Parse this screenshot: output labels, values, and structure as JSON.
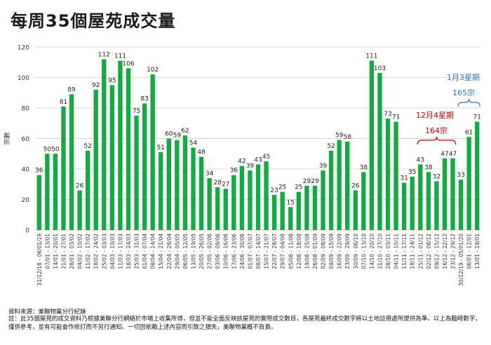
{
  "title": "每周35個屋苑成交量",
  "source": "資料來源：美聯物業分行紀錄",
  "note": "註：此35個屋苑的成交資料乃根據美聯分行網絡於市場上收集所得，但並不能全面反映該屋苑的實際成交數目，各屋苑最終成交數字將以土地註冊處所提供為準。以上為臨時數字，僅供參考，並有可能會作修訂而不另行通知。一切因依賴上述內容而引致之損失，美聯物業概不負責。",
  "annotations": {
    "dec_label": "12月4星期",
    "dec_total": "164宗",
    "jan_label": "1月3星期",
    "jan_total": "165宗"
  },
  "colors": {
    "bar": "#13a943",
    "grid": "#d9d9d9",
    "dec_annotation": "#c00000",
    "jan_annotation": "#2e75b6"
  },
  "chart_data": {
    "type": "bar",
    "title": "每周35個屋苑成交量",
    "xlabel": "",
    "ylabel": "宗數",
    "ylim": [
      0,
      120
    ],
    "yticks": [
      0,
      20,
      40,
      60,
      80,
      100,
      120
    ],
    "grid": true,
    "categories": [
      "31/12/18 - 06/01/19",
      "07/01 - 13/01",
      "14/01 - 20/01",
      "21/01 - 27/01",
      "28/01 - 03/02",
      "04/02 - 10/02",
      "11/02 - 17/02",
      "18/02 - 24/02",
      "25/02 - 03/03",
      "04/03 - 10/03",
      "11/03 - 17/03",
      "18/03 - 24/03",
      "25/03 - 31/03",
      "01/04 - 07/04",
      "08/04 - 14/04",
      "15/04 - 21/04",
      "22/04 - 28/04",
      "29/04 - 05/05",
      "06/05 - 12/05",
      "13/05 - 19/05",
      "20/05 - 26/05",
      "27/05 - 02/06",
      "03/06 - 09/06",
      "10/06 - 16/06",
      "17/06 - 23/06",
      "24/06 - 30/06",
      "01/07 - 07/07",
      "08/07 - 14/07",
      "15/07 - 21/07",
      "22/07 - 28/07",
      "29/07 - 04/08",
      "05/08 - 11/08",
      "12/08 - 18/08",
      "19/08 - 25/08",
      "26/08 - 01/09",
      "02/09 - 08/09",
      "09/09 - 15/09",
      "16/09 - 22/09",
      "23/09 - 29/09",
      "30/09 - 06/10",
      "07/10 - 13/10",
      "14/10 - 20/10",
      "21/10 - 27/10",
      "28/10 - 03/11",
      "04/11 - 10/11",
      "11/11 - 17/11",
      "18/11 - 24/11",
      "25/11 - 01/12",
      "02/12 - 08/12",
      "09/12 - 15/12",
      "16/12 - 22/12",
      "23/12 - 29/12",
      "30/12/19 - 05/01/20",
      "06/01 - 12/01",
      "13/01 - 19/01"
    ],
    "values": [
      36,
      50,
      50,
      81,
      89,
      26,
      52,
      92,
      112,
      95,
      111,
      106,
      75,
      83,
      102,
      51,
      60,
      59,
      62,
      54,
      48,
      34,
      28,
      27,
      36,
      42,
      39,
      43,
      45,
      23,
      25,
      15,
      25,
      29,
      29,
      39,
      52,
      59,
      58,
      26,
      38,
      111,
      103,
      73,
      71,
      31,
      35,
      43,
      38,
      32,
      47,
      47,
      33,
      61,
      71
    ]
  }
}
